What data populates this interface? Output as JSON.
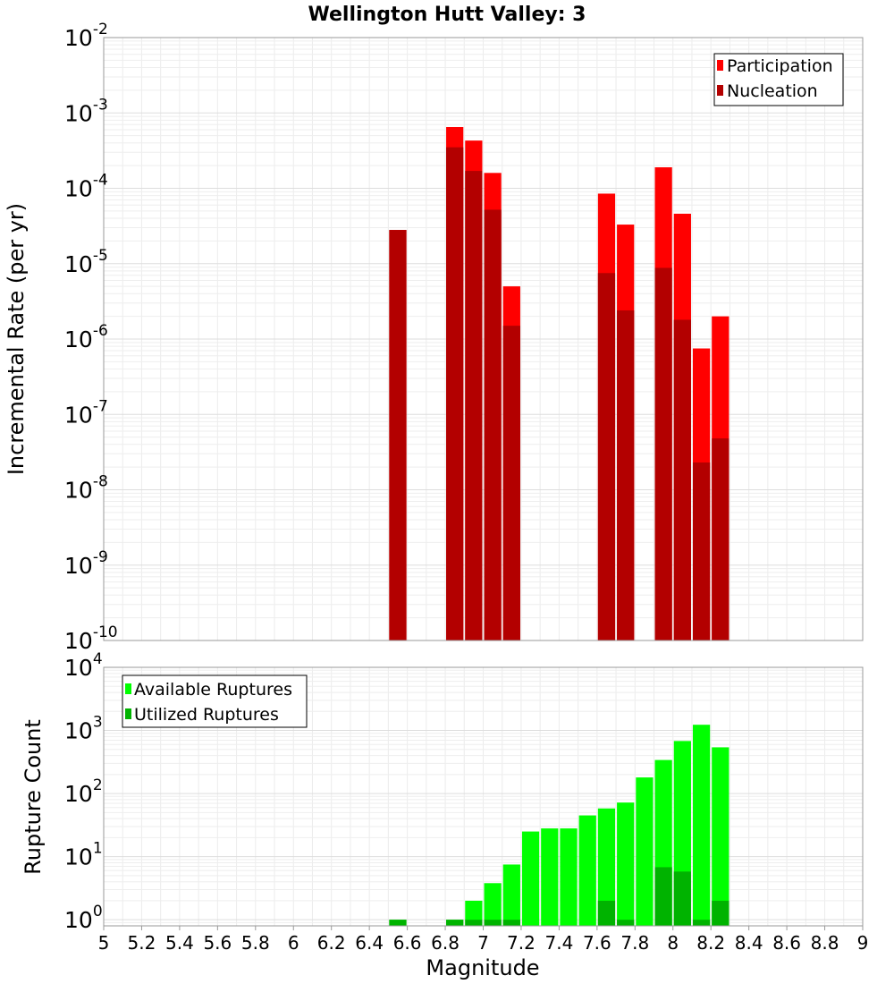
{
  "title": "Wellington Hutt Valley: 3",
  "chart_data": [
    {
      "type": "bar",
      "ylabel": "Incremental Rate (per yr)",
      "yscale": "log",
      "ylim": [
        1e-10,
        0.01
      ],
      "grid": true,
      "legend_position": "top-right",
      "y_ticks": [
        {
          "base": "10",
          "exp": "-2"
        },
        {
          "base": "10",
          "exp": "-3"
        },
        {
          "base": "10",
          "exp": "-4"
        },
        {
          "base": "10",
          "exp": "-5"
        },
        {
          "base": "10",
          "exp": "-6"
        },
        {
          "base": "10",
          "exp": "-7"
        },
        {
          "base": "10",
          "exp": "-8"
        },
        {
          "base": "10",
          "exp": "-9"
        },
        {
          "base": "10",
          "exp": "-10"
        }
      ],
      "series": [
        {
          "name": "Participation",
          "color": "#ff0000",
          "points": [
            {
              "x": 6.55,
              "y": 2.8e-05
            },
            {
              "x": 6.85,
              "y": 0.00065
            },
            {
              "x": 6.95,
              "y": 0.00043
            },
            {
              "x": 7.05,
              "y": 0.00016
            },
            {
              "x": 7.15,
              "y": 5e-06
            },
            {
              "x": 7.65,
              "y": 8.5e-05
            },
            {
              "x": 7.75,
              "y": 3.3e-05
            },
            {
              "x": 7.95,
              "y": 0.00019
            },
            {
              "x": 8.05,
              "y": 4.6e-05
            },
            {
              "x": 8.15,
              "y": 7.5e-07
            },
            {
              "x": 8.25,
              "y": 2e-06
            }
          ]
        },
        {
          "name": "Nucleation",
          "color": "#b30000",
          "points": [
            {
              "x": 6.55,
              "y": 2.8e-05
            },
            {
              "x": 6.85,
              "y": 0.00035
            },
            {
              "x": 6.95,
              "y": 0.00017
            },
            {
              "x": 7.05,
              "y": 5.2e-05
            },
            {
              "x": 7.15,
              "y": 1.5e-06
            },
            {
              "x": 7.65,
              "y": 7.5e-06
            },
            {
              "x": 7.75,
              "y": 2.4e-06
            },
            {
              "x": 7.95,
              "y": 8.8e-06
            },
            {
              "x": 8.05,
              "y": 1.8e-06
            },
            {
              "x": 8.15,
              "y": 2.3e-08
            },
            {
              "x": 8.25,
              "y": 4.8e-08
            }
          ]
        }
      ]
    },
    {
      "type": "bar",
      "xlabel": "Magnitude",
      "ylabel": "Rupture Count",
      "yscale": "log",
      "ylim": [
        0.8,
        10000
      ],
      "xlim": [
        5,
        9
      ],
      "grid": true,
      "legend_position": "top-left",
      "x_ticks": [
        "5",
        "5.2",
        "5.4",
        "5.6",
        "5.8",
        "6",
        "6.2",
        "6.4",
        "6.6",
        "6.8",
        "7",
        "7.2",
        "7.4",
        "7.6",
        "7.8",
        "8",
        "8.2",
        "8.4",
        "8.6",
        "8.8",
        "9"
      ],
      "y_ticks": [
        {
          "base": "10",
          "exp": "4"
        },
        {
          "base": "10",
          "exp": "3"
        },
        {
          "base": "10",
          "exp": "2"
        },
        {
          "base": "10",
          "exp": "1"
        },
        {
          "base": "10",
          "exp": "0"
        }
      ],
      "series": [
        {
          "name": "Available Ruptures",
          "color": "#00ff00",
          "points": [
            {
              "x": 6.55,
              "y": 1
            },
            {
              "x": 6.85,
              "y": 1
            },
            {
              "x": 6.95,
              "y": 2
            },
            {
              "x": 7.05,
              "y": 3.8
            },
            {
              "x": 7.15,
              "y": 7.5
            },
            {
              "x": 7.25,
              "y": 25
            },
            {
              "x": 7.35,
              "y": 28
            },
            {
              "x": 7.45,
              "y": 28
            },
            {
              "x": 7.55,
              "y": 45
            },
            {
              "x": 7.65,
              "y": 58
            },
            {
              "x": 7.75,
              "y": 72
            },
            {
              "x": 7.85,
              "y": 180
            },
            {
              "x": 7.95,
              "y": 340
            },
            {
              "x": 8.05,
              "y": 680
            },
            {
              "x": 8.15,
              "y": 1230
            },
            {
              "x": 8.25,
              "y": 540
            }
          ]
        },
        {
          "name": "Utilized Ruptures",
          "color": "#00b300",
          "points": [
            {
              "x": 6.55,
              "y": 1
            },
            {
              "x": 6.85,
              "y": 1
            },
            {
              "x": 6.95,
              "y": 1
            },
            {
              "x": 7.05,
              "y": 1
            },
            {
              "x": 7.15,
              "y": 1
            },
            {
              "x": 7.65,
              "y": 2
            },
            {
              "x": 7.75,
              "y": 1
            },
            {
              "x": 7.95,
              "y": 6.8
            },
            {
              "x": 8.05,
              "y": 5.8
            },
            {
              "x": 8.15,
              "y": 1
            },
            {
              "x": 8.25,
              "y": 2
            }
          ]
        }
      ]
    }
  ]
}
